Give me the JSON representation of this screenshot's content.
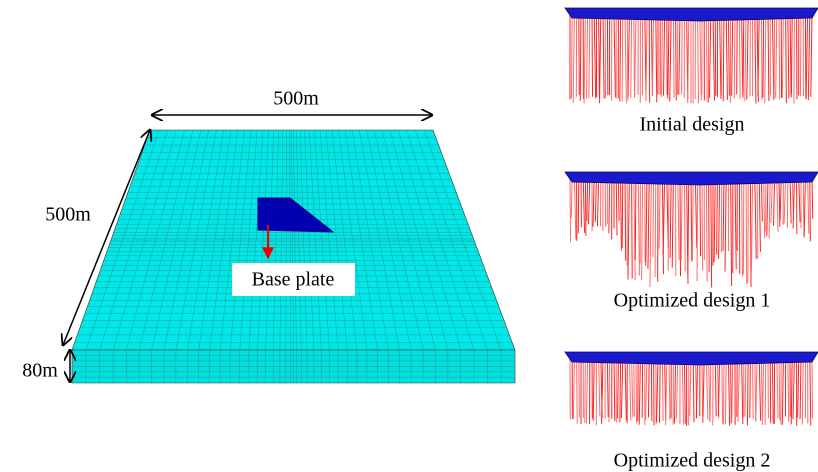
{
  "dimensions": {
    "length": "500m",
    "width": "500m",
    "depth": "80m"
  },
  "labels": {
    "base_plate": "Base plate"
  },
  "designs": [
    {
      "label": "Initial design"
    },
    {
      "label": "Optimized design 1"
    },
    {
      "label": "Optimized design 2"
    }
  ]
}
